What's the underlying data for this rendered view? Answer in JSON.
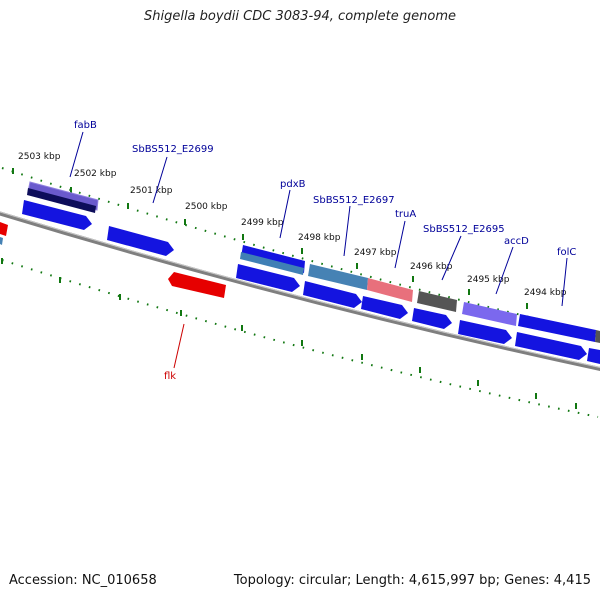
{
  "title": "Shigella boydii CDC 3083-94, complete genome",
  "footer": {
    "accession": "Accession: NC_010658",
    "topology": "Topology: circular; Length: 4,615,997 bp; Genes: 4,415"
  },
  "kbp_labels": [
    "2503 kbp",
    "2502 kbp",
    "2501 kbp",
    "2500 kbp",
    "2499 kbp",
    "2498 kbp",
    "2497 kbp",
    "2496 kbp",
    "2495 kbp",
    "2494 kbp"
  ],
  "gene_labels": [
    "fabB",
    "SbBS512_E2699",
    "pdxB",
    "SbBS512_E2697",
    "truA",
    "SbBS512_E2695",
    "accD",
    "folC",
    "flk"
  ],
  "colors": {
    "cds": "#1010e6",
    "cds_dark": "#101070",
    "cds_violet": "#7060d0",
    "cds_steel": "#4a80b8",
    "cds_pink": "#e86070",
    "cds_gray": "#555555",
    "reverse_cds": "#e00000",
    "tick": "#117711",
    "backbone": "#808080",
    "label_forward": "#000099",
    "label_reverse": "#cc0000"
  }
}
